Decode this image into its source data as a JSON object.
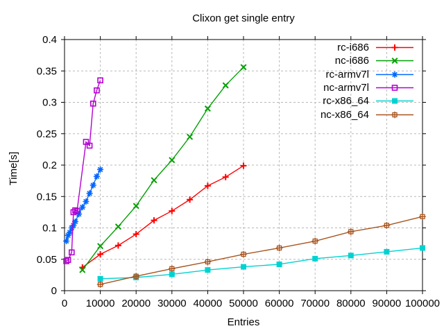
{
  "title": "Clixon get single entry",
  "chart_data": {
    "type": "line",
    "title": "Clixon get single entry",
    "xlabel": "Entries",
    "ylabel": "Time[s]",
    "xlim": [
      0,
      100000
    ],
    "ylim": [
      0,
      0.4
    ],
    "xtick_values": [
      0,
      10000,
      20000,
      30000,
      40000,
      50000,
      60000,
      70000,
      80000,
      90000,
      100000
    ],
    "xtick_labels": [
      "0",
      "10000",
      "20000",
      "30000",
      "40000",
      "50000",
      "60000",
      "70000",
      "80000",
      "90000",
      "100000"
    ],
    "ytick_values": [
      0,
      0.05,
      0.1,
      0.15,
      0.2,
      0.25,
      0.3,
      0.35,
      0.4
    ],
    "ytick_labels": [
      "0",
      "0.05",
      "0.1",
      "0.15",
      "0.2",
      "0.25",
      "0.3",
      "0.35",
      "0.4"
    ],
    "grid": true,
    "grid_color": "#b8b8b8",
    "background": "#ffffff",
    "border_color": "#000000",
    "legend_position": "top-right-inside",
    "series": [
      {
        "name": "rc-i686",
        "color": "#ff0000",
        "marker": "plus",
        "x": [
          5000,
          10000,
          15000,
          20000,
          25000,
          30000,
          35000,
          40000,
          45000,
          50000
        ],
        "y": [
          0.037,
          0.058,
          0.072,
          0.09,
          0.112,
          0.127,
          0.145,
          0.167,
          0.181,
          0.199
        ]
      },
      {
        "name": "nc-i686",
        "color": "#00a000",
        "marker": "cross",
        "x": [
          5000,
          10000,
          15000,
          20000,
          25000,
          30000,
          35000,
          40000,
          45000,
          50000
        ],
        "y": [
          0.033,
          0.071,
          0.102,
          0.135,
          0.176,
          0.208,
          0.245,
          0.29,
          0.327,
          0.356
        ]
      },
      {
        "name": "rc-armv7l",
        "color": "#0066ff",
        "marker": "asterisk",
        "x": [
          500,
          1000,
          1500,
          2000,
          2500,
          3000,
          4000,
          5000,
          6000,
          7000,
          8000,
          9000,
          10000
        ],
        "y": [
          0.079,
          0.088,
          0.093,
          0.1,
          0.104,
          0.11,
          0.122,
          0.133,
          0.142,
          0.155,
          0.168,
          0.182,
          0.193
        ]
      },
      {
        "name": "nc-armv7l",
        "color": "#b400d3",
        "marker": "open-square",
        "x": [
          500,
          1000,
          2000,
          2500,
          3000,
          3500,
          6000,
          7000,
          8000,
          9000,
          10000
        ],
        "y": [
          0.047,
          0.049,
          0.061,
          0.125,
          0.128,
          0.127,
          0.237,
          0.231,
          0.298,
          0.319,
          0.335
        ]
      },
      {
        "name": "rc-x86_64",
        "color": "#00d2d2",
        "marker": "filled-square",
        "x": [
          10000,
          20000,
          30000,
          40000,
          50000,
          60000,
          70000,
          80000,
          90000,
          100000
        ],
        "y": [
          0.019,
          0.021,
          0.026,
          0.033,
          0.038,
          0.042,
          0.051,
          0.056,
          0.062,
          0.068
        ]
      },
      {
        "name": "nc-x86_64",
        "color": "#a8541e",
        "marker": "boxed-plus",
        "x": [
          10000,
          20000,
          30000,
          40000,
          50000,
          60000,
          70000,
          80000,
          90000,
          100000
        ],
        "y": [
          0.01,
          0.023,
          0.035,
          0.046,
          0.058,
          0.068,
          0.079,
          0.094,
          0.104,
          0.118
        ]
      }
    ]
  }
}
